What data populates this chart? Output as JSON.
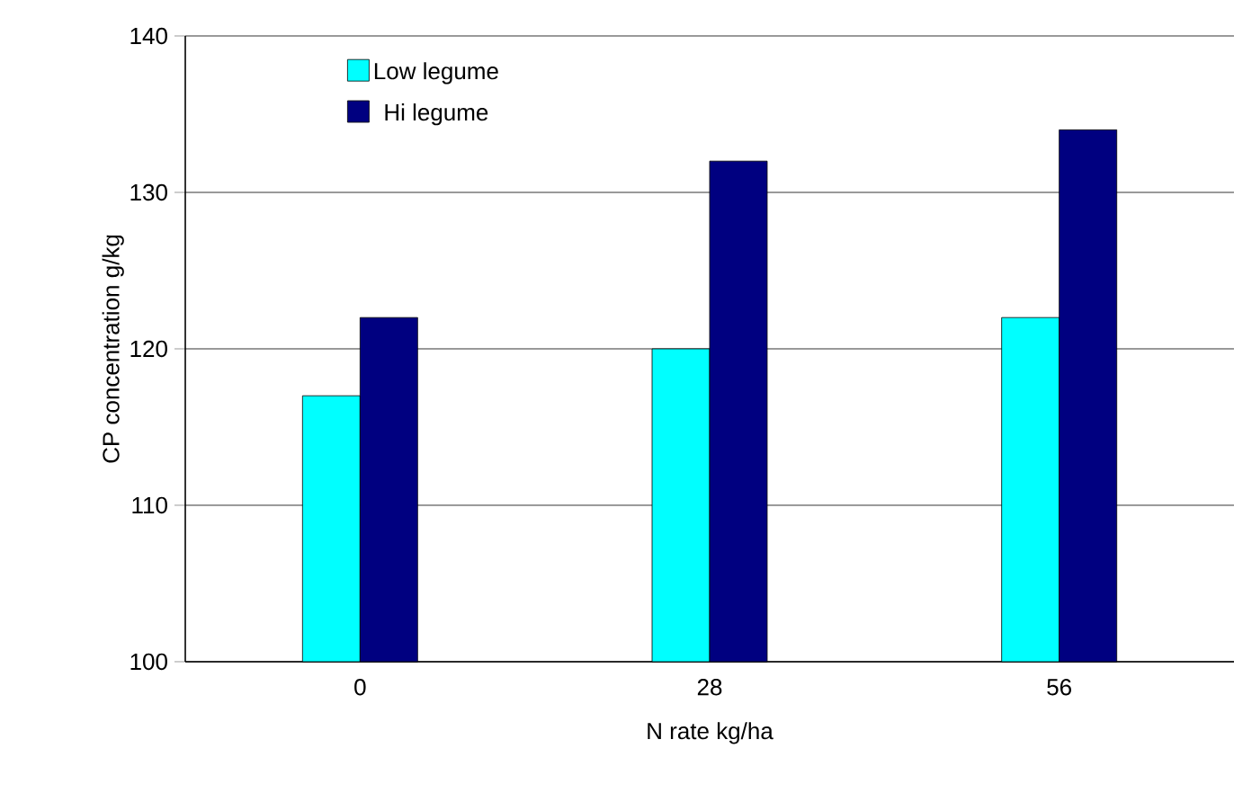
{
  "chart_data": {
    "type": "bar",
    "xlabel": "N rate kg/ha",
    "ylabel": "CP concentration g/kg",
    "categories": [
      "0",
      "28",
      "56"
    ],
    "series": [
      {
        "name": "Low  legume",
        "color": "#00ffff",
        "values": [
          117,
          120,
          122
        ]
      },
      {
        "name": "Hi legume",
        "color": "#000080",
        "values": [
          122,
          132,
          134
        ]
      }
    ],
    "ylim": [
      100,
      140
    ],
    "yticks": [
      100,
      110,
      120,
      130,
      140
    ],
    "grid": "y",
    "legend": "top left"
  }
}
